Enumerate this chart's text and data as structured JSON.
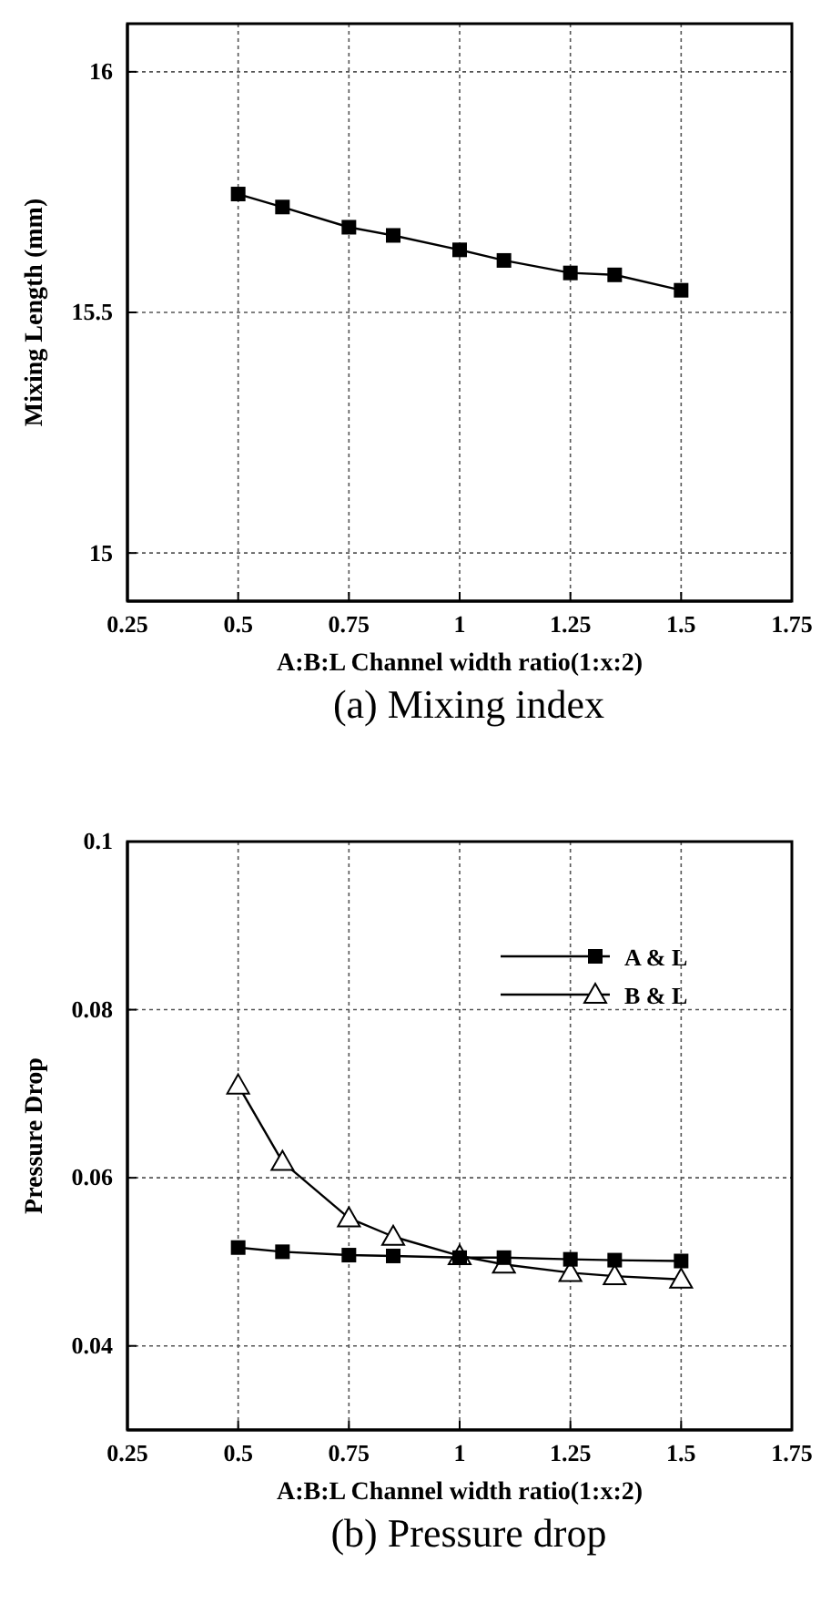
{
  "chart_data": [
    {
      "type": "line",
      "title": "(a) Mixing index",
      "xlabel": "A:B:L Channel width ratio(1:x:2)",
      "ylabel": "Mixing Length (mm)",
      "x": [
        0.5,
        0.6,
        0.75,
        0.85,
        1,
        1.1,
        1.25,
        1.35,
        1.5
      ],
      "series": [
        {
          "color": "#000000",
          "marker": "square",
          "values": [
            15.746,
            15.719,
            15.677,
            15.66,
            15.63,
            15.608,
            15.582,
            15.578,
            15.546
          ]
        }
      ],
      "xlim": [
        0.25,
        1.75
      ],
      "xticks": [
        0.25,
        0.5,
        0.75,
        1,
        1.25,
        1.5,
        1.75
      ],
      "ylim": [
        14.9,
        16.1
      ],
      "yticks": [
        15,
        15.5,
        16
      ],
      "grid": true,
      "legend": false
    },
    {
      "type": "line",
      "title": "(b) Pressure drop",
      "xlabel": "A:B:L Channel width ratio(1:x:2)",
      "ylabel": "Pressure Drop",
      "x": [
        0.5,
        0.6,
        0.75,
        0.85,
        1,
        1.1,
        1.25,
        1.35,
        1.5
      ],
      "series": [
        {
          "name": "A  & L",
          "color": "#000000",
          "marker": "square",
          "values": [
            0.0517,
            0.0512,
            0.0508,
            0.0507,
            0.0505,
            0.0505,
            0.0503,
            0.0502,
            0.0501
          ]
        },
        {
          "name": "B & L",
          "color": "#000000",
          "marker": "triangle",
          "values": [
            0.071,
            0.0619,
            0.0552,
            0.053,
            0.0507,
            0.0497,
            0.0487,
            0.0483,
            0.0479
          ]
        }
      ],
      "xlim": [
        0.25,
        1.75
      ],
      "xticks": [
        0.25,
        0.5,
        0.75,
        1,
        1.25,
        1.5,
        1.75
      ],
      "ylim": [
        0.03,
        0.1
      ],
      "yticks": [
        0.04,
        0.06,
        0.08,
        0.1
      ],
      "grid": true,
      "legend": "top right"
    }
  ]
}
